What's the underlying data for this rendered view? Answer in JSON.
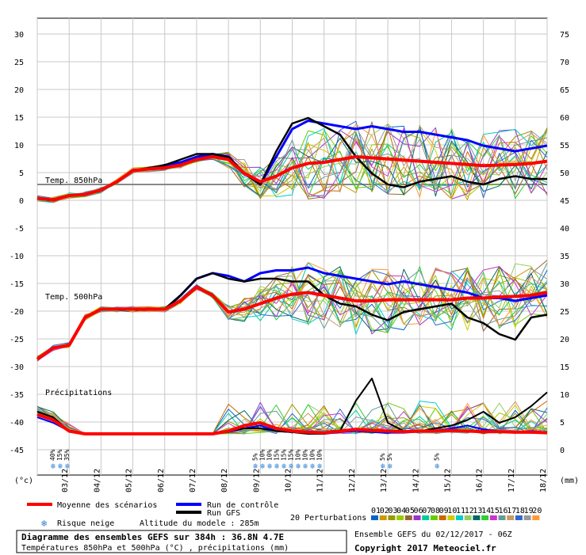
{
  "chart_data": {
    "type": "line",
    "title": "Diagramme des ensembles GEFS sur 384h : 36.8N 4.7E",
    "subtitle": "Températures 850hPa et 500hPa (°C) , précipitations (mm)",
    "ensemble_info": "Ensemble GEFS du 02/12/2017 - 06Z",
    "copyright": "Copyright 2017 Meteociel.fr",
    "altitude_label": "Altitude du modele : 285m",
    "left_axis_unit": "(°c)",
    "right_axis_unit": "(mm)",
    "left_ticks": [
      "30",
      "25",
      "20",
      "15",
      "10",
      "5",
      "0",
      "-5",
      "-10",
      "-15",
      "-20",
      "-25",
      "-30",
      "-35",
      "-40",
      "-45"
    ],
    "right_ticks": [
      "75",
      "70",
      "65",
      "60",
      "55",
      "50",
      "45",
      "40",
      "35",
      "30",
      "25",
      "20",
      "15",
      "10",
      "5",
      "0"
    ],
    "date_labels": [
      "03/12",
      "04/12",
      "05/12",
      "06/12",
      "07/12",
      "08/12",
      "09/12",
      "10/12",
      "11/12",
      "12/12",
      "13/12",
      "14/12",
      "15/12",
      "16/12",
      "17/12",
      "18/12"
    ],
    "section_labels": {
      "t850": "Temp. 850hPa",
      "t500": "Temp. 500hPa",
      "precip": "Précipitations"
    },
    "legend": {
      "mean": "Moyenne des scénarios",
      "control": "Run de contrôle",
      "gfs": "Run GFS",
      "snow": "Risque neige",
      "perturbations": "20 Perturbations",
      "perturbation_ids": [
        "01",
        "02",
        "03",
        "04",
        "05",
        "06",
        "07",
        "08",
        "09",
        "10",
        "11",
        "12",
        "13",
        "14",
        "15",
        "16",
        "17",
        "18",
        "19",
        "20"
      ]
    },
    "colors": {
      "mean": "#ff0000",
      "control": "#0000ff",
      "gfs": "#000000",
      "perturbations": [
        "#0066cc",
        "#cc9900",
        "#999900",
        "#99cc00",
        "#996633",
        "#9933cc",
        "#00cc99",
        "#66cc00",
        "#cc6600",
        "#cccc00",
        "#00cccc",
        "#99cc66",
        "#006666",
        "#33cc33",
        "#cc33cc",
        "#669999",
        "#cc9966",
        "#3366cc",
        "#999999",
        "#ff9933"
      ]
    },
    "snow_risk": [
      {
        "day": 0.45,
        "labels": [
          "40%",
          "15%",
          "35%"
        ]
      },
      {
        "day": 6.8,
        "labels": [
          "5%",
          "10%",
          "10%",
          "15%",
          "15%",
          "15%",
          "10%",
          "10%",
          "10%",
          "10%"
        ]
      },
      {
        "day": 10.8,
        "labels": [
          "5%",
          "5%"
        ]
      },
      {
        "day": 12.5,
        "labels": [
          "5%"
        ]
      }
    ],
    "series": {
      "t850_days": [
        0,
        0.5,
        1,
        1.5,
        2,
        2.5,
        3,
        3.5,
        4,
        4.5,
        5,
        5.5,
        6,
        6.5,
        7,
        7.5,
        8,
        8.5,
        9,
        9.5,
        10,
        10.5,
        11,
        11.5,
        12,
        12.5,
        13,
        13.5,
        14,
        14.5,
        15,
        15.5,
        16
      ],
      "t850_mean": [
        -2.5,
        -2.8,
        -2,
        -1.8,
        -1,
        0.5,
        2.5,
        2.8,
        3,
        3.5,
        4.5,
        5,
        4.5,
        2,
        0.5,
        1.5,
        3,
        3.8,
        4,
        4.5,
        5,
        4.8,
        4.6,
        4.4,
        4.2,
        4,
        3.8,
        3.6,
        3.4,
        3.5,
        3.6,
        3.8,
        4.2
      ],
      "t850_control": [
        -2.5,
        -2.8,
        -2,
        -1.8,
        -1,
        0.5,
        2.5,
        2.8,
        3.5,
        4,
        5,
        5.5,
        5,
        2,
        0,
        5,
        10,
        11.5,
        11,
        10.5,
        10,
        10.5,
        10,
        9.5,
        9.5,
        9,
        8.5,
        8,
        7,
        6.5,
        6,
        6.5,
        7
      ],
      "t850_gfs": [
        -2.5,
        -2.8,
        -2,
        -1.8,
        -1,
        0.5,
        2.5,
        3,
        3.5,
        4.5,
        5.5,
        5.5,
        5,
        2,
        0,
        6,
        11,
        12,
        10.5,
        9,
        5,
        2,
        0,
        -0.5,
        0.5,
        1,
        1.5,
        0.5,
        0,
        1,
        1.5,
        1,
        1
      ],
      "t500_mean": [
        -31.5,
        -29.5,
        -29,
        -24,
        -22.5,
        -22.5,
        -22.5,
        -22.5,
        -22.5,
        -21,
        -18.5,
        -20,
        -23,
        -22.5,
        -21.5,
        -20.5,
        -19.8,
        -19.5,
        -20,
        -20.5,
        -21,
        -21,
        -20.8,
        -20.8,
        -20.8,
        -20.8,
        -20.8,
        -20.5,
        -20.5,
        -20.3,
        -20.2,
        -20,
        -19.5
      ],
      "t500_control": [
        -31.5,
        -29.5,
        -29,
        -24,
        -22.5,
        -22.5,
        -22.5,
        -22.5,
        -22.5,
        -20,
        -17,
        -16,
        -16.5,
        -17.5,
        -16,
        -15.5,
        -15.5,
        -15,
        -16,
        -16.5,
        -17,
        -17.5,
        -18,
        -17.5,
        -18,
        -18.5,
        -19,
        -19.5,
        -20.5,
        -20.5,
        -21,
        -20.5,
        -20
      ],
      "t500_gfs": [
        -31.5,
        -29.5,
        -29,
        -24,
        -22.5,
        -22.5,
        -22.5,
        -22.5,
        -22.5,
        -20,
        -17,
        -16,
        -17,
        -17.5,
        -17,
        -17,
        -17.5,
        -17.5,
        -20,
        -21.5,
        -22,
        -23.5,
        -24.5,
        -23,
        -22.5,
        -22,
        -21.5,
        -24,
        -25,
        -27,
        -28,
        -24,
        -23.5
      ],
      "precip_days": [
        0,
        0.5,
        1,
        1.5,
        2,
        2.5,
        3,
        3.5,
        4,
        4.5,
        5,
        5.5,
        6,
        6.5,
        7,
        7.5,
        8,
        8.5,
        9,
        9.5,
        10,
        10.5,
        11,
        11.5,
        12,
        12.5,
        13,
        13.5,
        14,
        14.5,
        15,
        15.5,
        16
      ],
      "precip_mean": [
        3.5,
        2.5,
        0.5,
        0,
        0,
        0,
        0,
        0,
        0,
        0,
        0,
        0,
        0.5,
        1.5,
        2,
        1,
        0.5,
        0.3,
        0.2,
        0.5,
        0.8,
        0.6,
        0.5,
        0.4,
        0.5,
        0.5,
        0.6,
        0.5,
        0.4,
        0.4,
        0.3,
        0.3,
        0.2
      ],
      "precip_control": [
        3,
        2,
        0.5,
        0,
        0,
        0,
        0,
        0,
        0,
        0,
        0,
        0,
        0.3,
        1,
        1.5,
        0.5,
        0.3,
        0.2,
        0,
        0.3,
        0.5,
        0.3,
        0.2,
        0.2,
        0.4,
        0.5,
        1,
        1.5,
        0.8,
        0.5,
        0.3,
        0.5,
        0.3
      ],
      "precip_gfs": [
        4,
        3,
        0.5,
        0,
        0,
        0,
        0,
        0,
        0,
        0,
        0,
        0,
        0.5,
        1,
        1,
        0.5,
        0.3,
        0,
        0,
        0.5,
        6,
        10,
        2,
        0.5,
        0.5,
        1,
        1.5,
        2.5,
        4,
        2,
        3,
        5,
        7.5
      ]
    }
  }
}
